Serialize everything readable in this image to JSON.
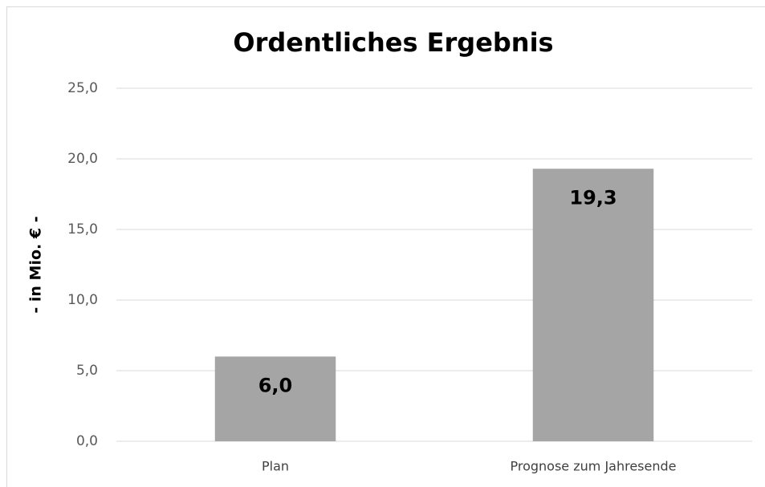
{
  "chart_data": {
    "type": "bar",
    "title": "Ordentliches Ergebnis",
    "y_label": "- in Mio. € -",
    "categories": [
      "Plan",
      "Prognose zum Jahresende"
    ],
    "values": [
      6.0,
      19.3
    ],
    "value_labels": [
      "6,0",
      "19,3"
    ],
    "color": "#a5a5a5",
    "ylim": [
      0,
      25
    ],
    "yticks": [
      {
        "value": 0,
        "label": "0,0"
      },
      {
        "value": 5,
        "label": "5,0"
      },
      {
        "value": 10,
        "label": "10,0"
      },
      {
        "value": 15,
        "label": "15,0"
      },
      {
        "value": 20,
        "label": "20,0"
      },
      {
        "value": 25,
        "label": "25,0"
      }
    ],
    "grid": true
  }
}
